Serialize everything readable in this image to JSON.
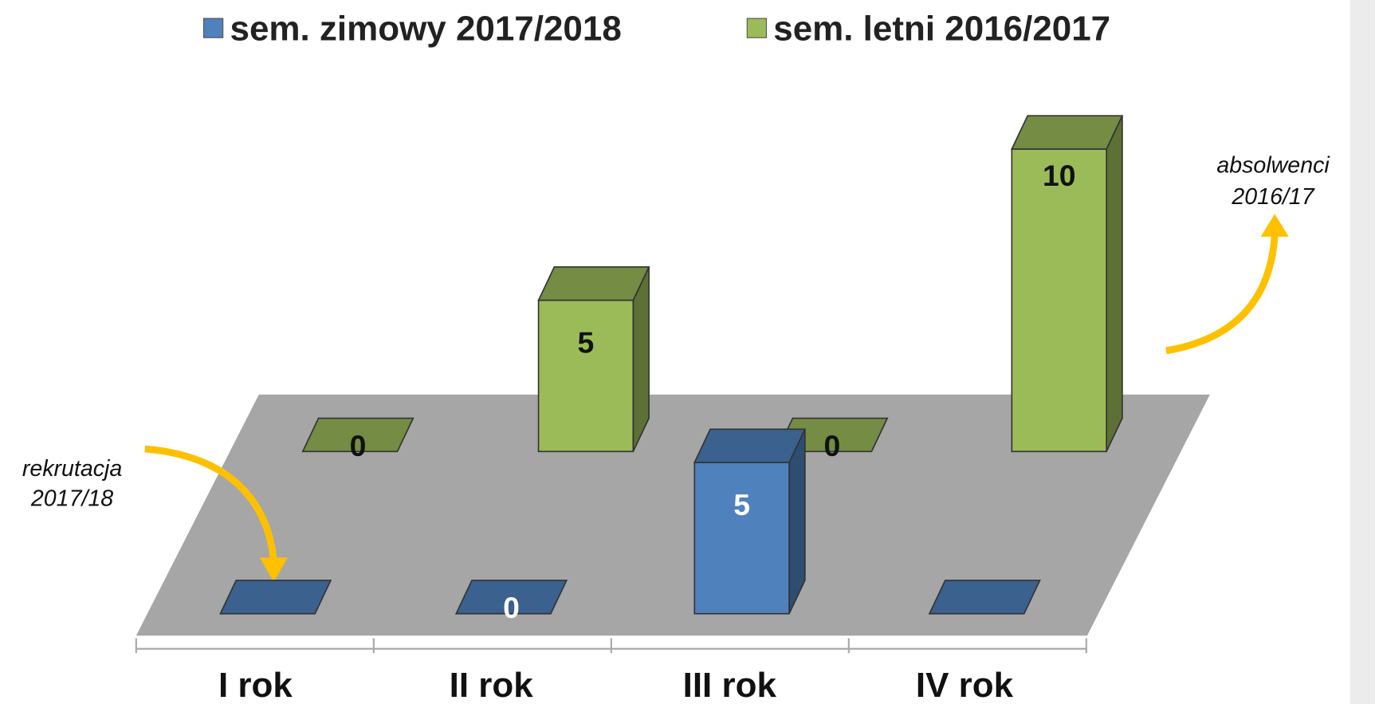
{
  "chart_data": {
    "type": "bar3d",
    "categories": [
      "I rok",
      "II rok",
      "III rok",
      "IV rok"
    ],
    "series": [
      {
        "name": "sem. zimowy 2017/2018",
        "color": "#4f81bd",
        "values": [
          0,
          0,
          5,
          0
        ],
        "value_labels": [
          null,
          "0",
          "5",
          null
        ]
      },
      {
        "name": "sem. letni 2016/2017",
        "color": "#9bbb59",
        "values": [
          0,
          5,
          0,
          10
        ]
      }
    ],
    "annotations": [
      {
        "lines": [
          "rekrutacja",
          "2017/18"
        ]
      },
      {
        "lines": [
          "absolwenci",
          "2016/17"
        ]
      }
    ]
  }
}
